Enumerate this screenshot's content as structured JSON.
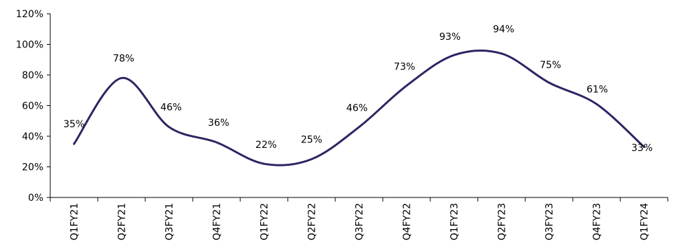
{
  "chart_data": {
    "type": "line",
    "title": "",
    "xlabel": "",
    "ylabel": "",
    "categories": [
      "Q1FY21",
      "Q2FY21",
      "Q3FY21",
      "Q4FY21",
      "Q1FY22",
      "Q2FY22",
      "Q3FY22",
      "Q4FY22",
      "Q1FY23",
      "Q2FY23",
      "Q3FY23",
      "Q4FY23",
      "Q1FY24"
    ],
    "series": [
      {
        "values": [
          35,
          78,
          46,
          36,
          22,
          25,
          46,
          73,
          93,
          94,
          75,
          61,
          33
        ]
      }
    ],
    "data_labels": [
      "35%",
      "78%",
      "46%",
      "36%",
      "22%",
      "25%",
      "46%",
      "73%",
      "93%",
      "94%",
      "75%",
      "61%",
      "33%"
    ],
    "ylim": [
      0,
      120
    ],
    "yticks": [
      0,
      20,
      40,
      60,
      80,
      100,
      120
    ],
    "ytick_labels": [
      "0%",
      "20%",
      "40%",
      "60%",
      "80%",
      "100%",
      "120%"
    ],
    "grid": false,
    "smooth": true,
    "line_color": "#2e2462"
  }
}
